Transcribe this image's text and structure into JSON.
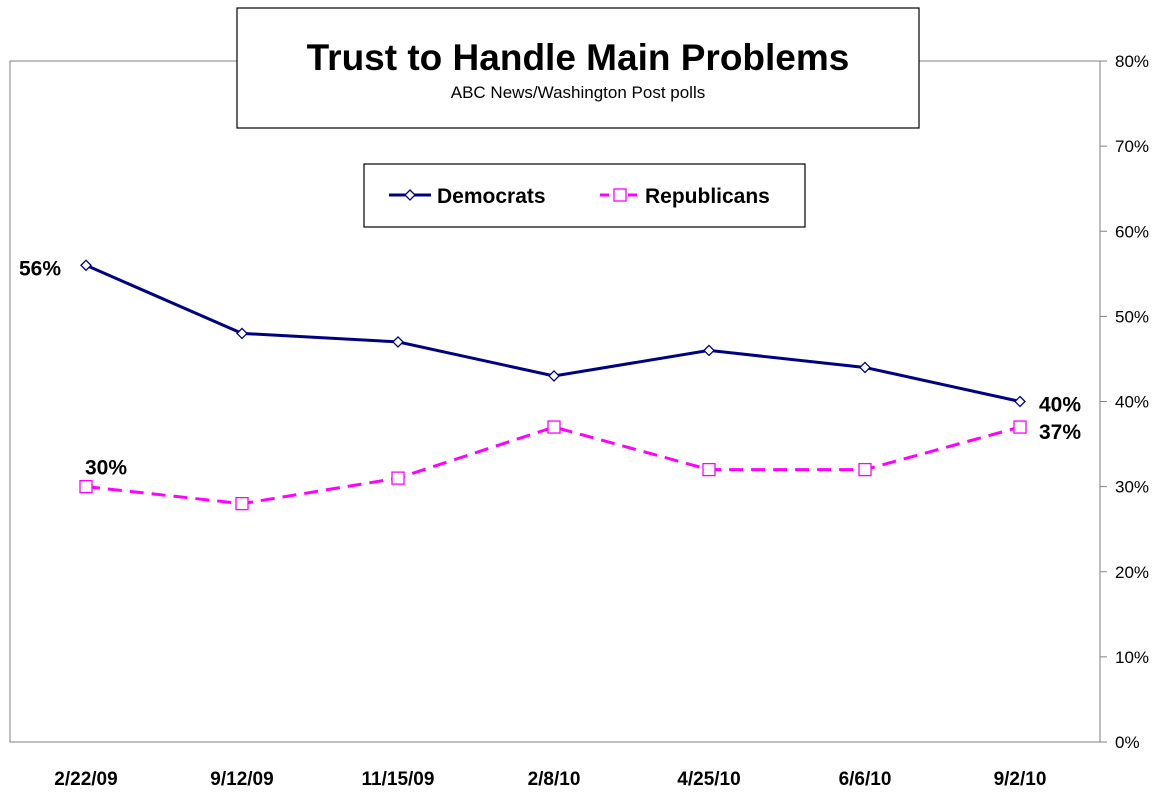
{
  "chart_data": {
    "type": "line",
    "title": "Trust to Handle Main Problems",
    "subtitle": "ABC News/Washington Post polls",
    "categories": [
      "2/22/09",
      "9/12/09",
      "11/15/09",
      "2/8/10",
      "4/25/10",
      "6/6/10",
      "9/2/10"
    ],
    "series": [
      {
        "name": "Democrats",
        "values": [
          56,
          48,
          47,
          43,
          46,
          44,
          40
        ],
        "color": "#000080",
        "marker": "diamond",
        "dash": "solid"
      },
      {
        "name": "Republicans",
        "values": [
          30,
          28,
          31,
          37,
          32,
          32,
          37
        ],
        "color": "#ff00ff",
        "marker": "square",
        "dash": "dashed"
      }
    ],
    "y_axis": {
      "min": 0,
      "max": 80,
      "step": 10,
      "side": "right",
      "ticks": [
        "0%",
        "10%",
        "20%",
        "30%",
        "40%",
        "50%",
        "60%",
        "70%",
        "80%"
      ]
    },
    "grid": false,
    "legend_position": "top-center",
    "data_labels": [
      {
        "series": 0,
        "index": 0,
        "text": "56%"
      },
      {
        "series": 0,
        "index": 6,
        "text": "40%"
      },
      {
        "series": 1,
        "index": 0,
        "text": "30%"
      },
      {
        "series": 1,
        "index": 6,
        "text": "37%"
      }
    ]
  }
}
